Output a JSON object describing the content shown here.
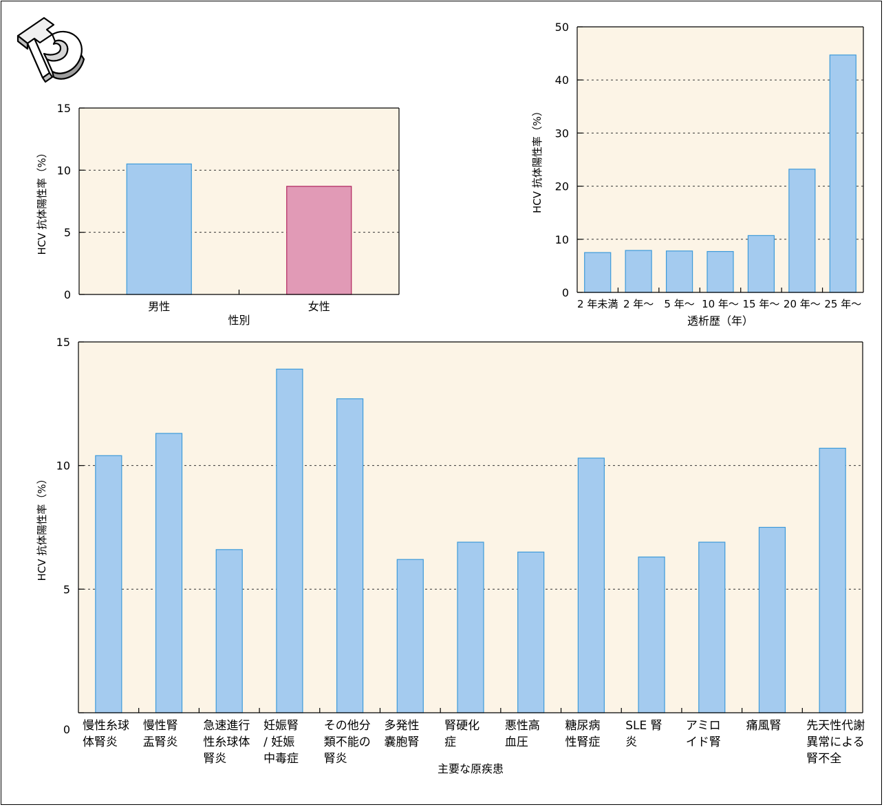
{
  "colors": {
    "plot_bg": "#fcf4e6",
    "blue_fill": "#a4cbef",
    "blue_stroke": "#3d9ad9",
    "pink_fill": "#e19ab6",
    "pink_stroke": "#b0245e"
  },
  "logo": {
    "icon": "td-logo-icon"
  },
  "chart_data": [
    {
      "id": "sex",
      "type": "bar",
      "xlabel": "性別",
      "ylabel": "HCV 抗体陽性率（%）",
      "ylim": [
        0,
        15
      ],
      "yticks": [
        0,
        5,
        10,
        15
      ],
      "grid": "dashed at 5 and 10",
      "categories": [
        "男性",
        "女性"
      ],
      "values": [
        10.5,
        8.7
      ],
      "bar_colors": [
        "blue",
        "pink"
      ]
    },
    {
      "id": "duration",
      "type": "bar",
      "xlabel": "透析歴（年）",
      "ylabel": "HCV 抗体陽性率（%）",
      "ylim": [
        0,
        50
      ],
      "yticks": [
        0,
        10,
        20,
        30,
        40,
        50
      ],
      "grid": "dashed at 10, 20, 30, 40",
      "categories": [
        "2 年未満",
        "2 年～",
        "5 年～",
        "10 年～",
        "15 年～",
        "20 年～",
        "25 年～"
      ],
      "values": [
        7.5,
        7.9,
        7.8,
        7.7,
        10.7,
        23.2,
        44.7
      ]
    },
    {
      "id": "disease",
      "type": "bar",
      "xlabel": "主要な原疾患",
      "ylabel": "HCV 抗体陽性率（%）",
      "ylim": [
        0,
        15
      ],
      "yticks": [
        0,
        5,
        10,
        15
      ],
      "grid": "dashed at 5 and 10",
      "categories": [
        [
          "慢性糸球",
          "体腎炎"
        ],
        [
          "慢性腎",
          "盂腎炎"
        ],
        [
          "急速進行",
          "性糸球体",
          "腎炎"
        ],
        [
          "妊娠腎",
          "/ 妊娠",
          "中毒症"
        ],
        [
          "その他分",
          "類不能の",
          "腎炎"
        ],
        [
          "多発性",
          "嚢胞腎"
        ],
        [
          "腎硬化",
          "症"
        ],
        [
          "悪性高",
          "血圧"
        ],
        [
          "糖尿病",
          "性腎症"
        ],
        [
          "SLE 腎",
          "炎"
        ],
        [
          "アミロ",
          "イド腎"
        ],
        [
          "痛風腎"
        ],
        [
          "先天性代謝",
          "異常による",
          "腎不全"
        ]
      ],
      "values": [
        10.4,
        11.3,
        6.6,
        13.9,
        12.7,
        6.2,
        6.9,
        6.5,
        10.3,
        6.3,
        6.9,
        7.5,
        10.7
      ]
    }
  ]
}
